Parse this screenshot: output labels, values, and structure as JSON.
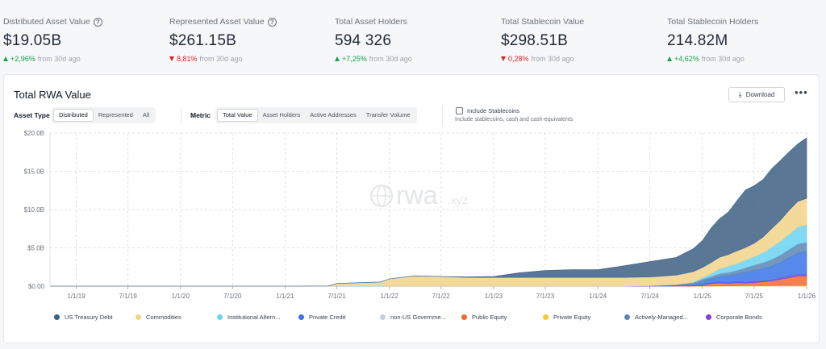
{
  "stats": [
    {
      "label": "Distributed Asset Value",
      "help": true,
      "value": "$19.05B",
      "direction": "up",
      "pct": "+2,96%",
      "suffix": "from 30d ago"
    },
    {
      "label": "Represented Asset Value",
      "help": true,
      "value": "$261.15B",
      "direction": "down",
      "pct": "8,81%",
      "suffix": "from 30d ago"
    },
    {
      "label": "Total Asset Holders",
      "help": false,
      "value": "594 326",
      "direction": "up",
      "pct": "+7,25%",
      "suffix": "from 30d ago"
    },
    {
      "label": "Total Stablecoin Value",
      "help": false,
      "value": "$298.51B",
      "direction": "down",
      "pct": "0,28%",
      "suffix": "from 30d ago"
    },
    {
      "label": "Total Stablecoin Holders",
      "help": false,
      "value": "214.82M",
      "direction": "up",
      "pct": "+4,62%",
      "suffix": "from 30d ago"
    }
  ],
  "card": {
    "title": "Total RWA Value",
    "download_label": "Download",
    "more_label": "•••",
    "asset_type_label": "Asset Type",
    "asset_type_options": [
      "Distributed",
      "Represented",
      "All"
    ],
    "asset_type_selected": "Distributed",
    "metric_label": "Metric",
    "metric_options": [
      "Total Value",
      "Asset Holders",
      "Active Addresses",
      "Transfer Volume"
    ],
    "metric_selected": "Total Value",
    "stablecoins_label": "Include Stablecoins",
    "stablecoins_checked": false,
    "stablecoins_sub": "Include stablecoins, cash and cash-equivalents",
    "watermark": "rwa",
    "watermark_suffix": ".xyz"
  },
  "colors": {
    "treasury": "#3d6083",
    "commodities": "#f2d488",
    "alternatives": "#6bd3f2",
    "private_credit": "#3a73e8",
    "non_us_gov": "#c2cedc",
    "public_equity": "#f06b2e",
    "private_equity": "#f6c926",
    "actively_managed": "#5b86b5",
    "corporate_bonds": "#8a3fd6"
  },
  "chart_data": {
    "type": "area",
    "stacked": true,
    "x": [
      "2018-10-01",
      "2019-01-01",
      "2019-07-01",
      "2020-01-01",
      "2020-07-01",
      "2021-01-01",
      "2021-06-01",
      "2021-07-01",
      "2021-12-01",
      "2022-01-01",
      "2022-04-01",
      "2022-07-01",
      "2022-10-01",
      "2023-01-01",
      "2023-04-01",
      "2023-07-01",
      "2023-10-01",
      "2024-01-01",
      "2024-04-01",
      "2024-07-01",
      "2024-10-01",
      "2024-12-01",
      "2025-01-01",
      "2025-02-01",
      "2025-03-01",
      "2025-04-01",
      "2025-05-01",
      "2025-06-01",
      "2025-07-01",
      "2025-08-01",
      "2025-09-01",
      "2025-10-01",
      "2025-11-01",
      "2025-12-01",
      "2026-01-01"
    ],
    "xticks": [
      "1/1/19",
      "7/1/19",
      "1/1/20",
      "7/1/20",
      "1/1/21",
      "7/1/21",
      "1/1/22",
      "7/1/22",
      "1/1/23",
      "7/1/23",
      "1/1/24",
      "7/1/24",
      "1/1/25",
      "7/1/25",
      "1/1/26"
    ],
    "yticks": [
      "$0.00",
      "$5.0B",
      "$10.0B",
      "$15.0B",
      "$20.0B"
    ],
    "ylim": [
      0,
      20
    ],
    "y_unit": "$B",
    "grid": true,
    "legend_position": "bottom",
    "series": [
      {
        "name": "Private Equity",
        "key": "private_equity",
        "values": [
          0,
          0,
          0,
          0,
          0,
          0,
          0,
          0,
          0,
          0,
          0,
          0,
          0,
          0,
          0,
          0,
          0,
          0,
          0,
          0,
          0,
          0,
          0,
          0,
          0.02,
          0.03,
          0.04,
          0.05,
          0.05,
          0.06,
          0.08,
          0.1,
          0.1,
          0.12,
          0.12
        ]
      },
      {
        "name": "Public Equity",
        "key": "public_equity",
        "values": [
          0,
          0,
          0,
          0,
          0,
          0,
          0,
          0,
          0,
          0,
          0,
          0,
          0,
          0,
          0,
          0,
          0,
          0,
          0,
          0,
          0,
          0,
          0.1,
          0.35,
          0.4,
          0.35,
          0.4,
          0.35,
          0.4,
          0.5,
          0.6,
          0.8,
          1.0,
          1.2,
          1.2
        ]
      },
      {
        "name": "Corporate Bonds",
        "key": "corporate_bonds",
        "values": [
          0,
          0,
          0,
          0,
          0,
          0,
          0,
          0,
          0,
          0,
          0,
          0,
          0,
          0,
          0,
          0,
          0,
          0,
          0,
          0,
          0,
          0.05,
          0.1,
          0.1,
          0.1,
          0.1,
          0.1,
          0.1,
          0.1,
          0.1,
          0.12,
          0.15,
          0.2,
          0.2,
          0.2
        ]
      },
      {
        "name": "Private Credit",
        "key": "private_credit",
        "values": [
          0,
          0,
          0,
          0,
          0,
          0,
          0,
          0,
          0,
          0,
          0,
          0,
          0,
          0,
          0,
          0,
          0,
          0,
          0,
          0,
          0.1,
          0.2,
          0.4,
          0.5,
          0.7,
          0.9,
          1.0,
          1.3,
          1.5,
          1.6,
          1.8,
          2.0,
          2.4,
          2.8,
          3.0
        ]
      },
      {
        "name": "Actively-Managed...",
        "key": "actively_managed",
        "values": [
          0,
          0,
          0,
          0,
          0,
          0,
          0,
          0,
          0,
          0,
          0,
          0,
          0,
          0,
          0,
          0,
          0,
          0,
          0,
          0.05,
          0.1,
          0.2,
          0.3,
          0.3,
          0.4,
          0.4,
          0.5,
          0.6,
          0.7,
          0.8,
          0.9,
          1.0,
          1.1,
          1.2,
          1.2
        ]
      },
      {
        "name": "Institutional Altern...",
        "key": "alternatives",
        "values": [
          0,
          0,
          0,
          0,
          0,
          0,
          0,
          0,
          0,
          0,
          0,
          0,
          0,
          0,
          0,
          0,
          0,
          0,
          0,
          0,
          0,
          0.1,
          0.2,
          0.4,
          0.6,
          0.8,
          0.9,
          1.0,
          1.1,
          1.3,
          1.6,
          1.8,
          2.0,
          2.2,
          2.3
        ]
      },
      {
        "name": "Commodities",
        "key": "commodities",
        "values": [
          0,
          0,
          0,
          0,
          0,
          0,
          0,
          0.3,
          0.5,
          0.9,
          1.3,
          1.2,
          1.1,
          1.1,
          1.1,
          1.1,
          1.1,
          1.1,
          1.1,
          1.1,
          1.2,
          1.3,
          1.3,
          1.4,
          1.5,
          1.5,
          1.6,
          1.6,
          1.7,
          2.0,
          2.4,
          2.7,
          3.1,
          3.3,
          3.4
        ]
      },
      {
        "name": "non-US Governme...",
        "key": "non_us_gov",
        "values": [
          0,
          0,
          0,
          0,
          0,
          0,
          0.02,
          0.05,
          0.05,
          0.05,
          0.05,
          0.05,
          0.05,
          0.05,
          0.05,
          0.05,
          0.05,
          0.05,
          0.05,
          0.05,
          0.05,
          0.05,
          0.05,
          0.05,
          0.05,
          0.05,
          0.05,
          0.05,
          0.05,
          0.05,
          0.05,
          0.05,
          0.05,
          0.05,
          0.05
        ]
      },
      {
        "name": "US Treasury Debt",
        "key": "treasury",
        "values": [
          0,
          0,
          0,
          0,
          0,
          0,
          0,
          0,
          0,
          0,
          0,
          0,
          0.05,
          0.1,
          0.6,
          0.9,
          1.0,
          1.0,
          1.5,
          2.0,
          2.3,
          3.0,
          3.5,
          4.5,
          5.0,
          5.5,
          6.5,
          7.5,
          7.5,
          7.5,
          7.8,
          7.8,
          7.6,
          7.5,
          7.9
        ]
      }
    ],
    "legend_order": [
      "US Treasury Debt",
      "Commodities",
      "Institutional Altern...",
      "Private Credit",
      "non-US Governme...",
      "Public Equity",
      "Private Equity",
      "Actively-Managed...",
      "Corporate Bonds"
    ]
  }
}
